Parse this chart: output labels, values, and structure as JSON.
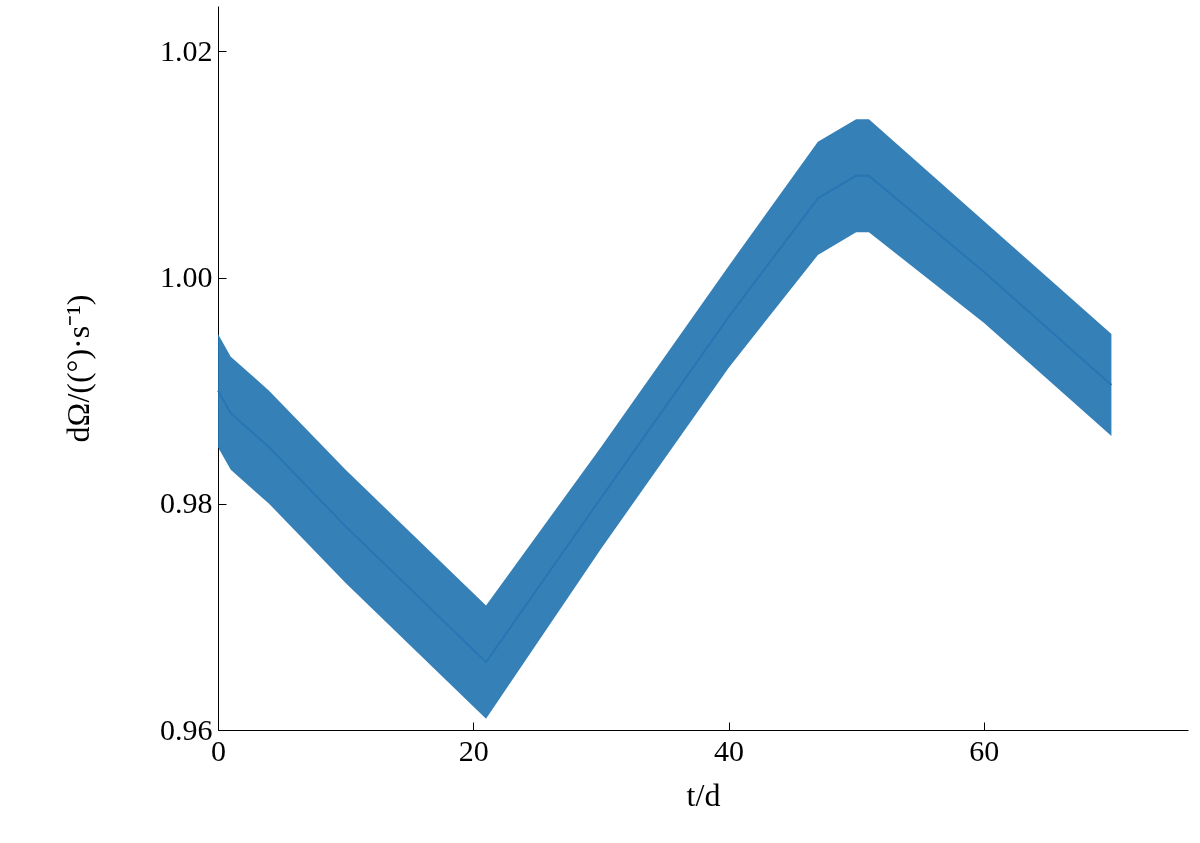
{
  "chart_data": {
    "type": "line",
    "xlabel": "t/d",
    "ylabel": "dΩ/((°)·s⁻¹)",
    "x": [
      0,
      1,
      4,
      10,
      21,
      30,
      40,
      47,
      50,
      51,
      60,
      70
    ],
    "series": [
      {
        "color": "#2776b3",
        "values": [
          0.99,
          0.988,
          0.985,
          0.978,
          0.966,
          0.9805,
          0.9965,
          1.007,
          1.009,
          1.009,
          1.0005,
          0.9905
        ],
        "lower": [
          0.985,
          0.983,
          0.98,
          0.973,
          0.961,
          0.976,
          0.992,
          1.002,
          1.004,
          1.004,
          0.996,
          0.986
        ],
        "upper": [
          0.995,
          0.993,
          0.99,
          0.983,
          0.971,
          0.985,
          1.001,
          1.012,
          1.014,
          1.014,
          1.005,
          0.995
        ]
      }
    ],
    "xlim": [
      0,
      76
    ],
    "xticks": [
      0,
      20,
      40,
      60
    ],
    "ylim": [
      0.96,
      1.024
    ],
    "yticks": [
      0.96,
      0.98,
      {
        "value": 1,
        "label": "1.00"
      },
      1.02
    ],
    "grid": false
  }
}
